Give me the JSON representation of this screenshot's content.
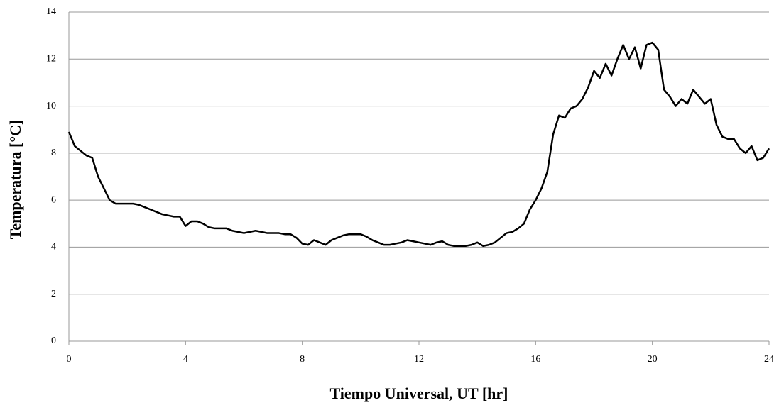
{
  "chart_data": {
    "type": "line",
    "x_label": "Tiempo Universal, UT [hr]",
    "y_label": "Temperatura [°C]",
    "xlim": [
      0,
      24
    ],
    "xticks": [
      0,
      4,
      8,
      12,
      16,
      20,
      24
    ],
    "ylim": [
      0,
      14
    ],
    "yticks": [
      0,
      2,
      4,
      6,
      8,
      10,
      12,
      14
    ],
    "grid": true,
    "x": [
      0,
      0.2,
      0.4,
      0.6,
      0.8,
      1,
      1.2,
      1.4,
      1.6,
      1.8,
      2,
      2.2,
      2.4,
      2.6,
      2.8,
      3,
      3.2,
      3.4,
      3.6,
      3.8,
      4,
      4.2,
      4.4,
      4.6,
      4.8,
      5,
      5.2,
      5.4,
      5.6,
      5.8,
      6,
      6.2,
      6.4,
      6.6,
      6.8,
      7,
      7.2,
      7.4,
      7.6,
      7.8,
      8,
      8.2,
      8.4,
      8.6,
      8.8,
      9,
      9.2,
      9.4,
      9.6,
      9.8,
      10,
      10.2,
      10.4,
      10.6,
      10.8,
      11,
      11.2,
      11.4,
      11.6,
      11.8,
      12,
      12.2,
      12.4,
      12.6,
      12.8,
      13,
      13.2,
      13.4,
      13.6,
      13.8,
      14,
      14.2,
      14.4,
      14.6,
      14.8,
      15,
      15.2,
      15.4,
      15.6,
      15.8,
      16,
      16.2,
      16.4,
      16.6,
      16.8,
      17,
      17.2,
      17.4,
      17.6,
      17.8,
      18,
      18.2,
      18.4,
      18.6,
      18.8,
      19,
      19.2,
      19.4,
      19.6,
      19.8,
      20,
      20.2,
      20.4,
      20.6,
      20.8,
      21,
      21.2,
      21.4,
      21.6,
      21.8,
      22,
      22.2,
      22.4,
      22.6,
      22.8,
      23,
      23.2,
      23.4,
      23.6,
      23.8,
      24
    ],
    "series": [
      {
        "color": "#000000",
        "values": [
          8.9,
          8.3,
          8.1,
          7.9,
          7.8,
          7.0,
          6.5,
          6.0,
          5.85,
          5.85,
          5.85,
          5.85,
          5.8,
          5.7,
          5.6,
          5.5,
          5.4,
          5.35,
          5.3,
          5.3,
          4.9,
          5.1,
          5.1,
          5.0,
          4.85,
          4.8,
          4.8,
          4.8,
          4.7,
          4.65,
          4.6,
          4.65,
          4.7,
          4.65,
          4.6,
          4.6,
          4.6,
          4.55,
          4.55,
          4.4,
          4.15,
          4.1,
          4.3,
          4.2,
          4.1,
          4.3,
          4.4,
          4.5,
          4.55,
          4.55,
          4.55,
          4.45,
          4.3,
          4.2,
          4.1,
          4.1,
          4.15,
          4.2,
          4.3,
          4.25,
          4.2,
          4.15,
          4.1,
          4.2,
          4.25,
          4.1,
          4.05,
          4.05,
          4.05,
          4.1,
          4.2,
          4.05,
          4.1,
          4.2,
          4.4,
          4.6,
          4.65,
          4.8,
          5.0,
          5.6,
          6.0,
          6.5,
          7.2,
          8.8,
          9.6,
          9.5,
          9.9,
          10.0,
          10.3,
          10.8,
          11.5,
          11.2,
          11.8,
          11.3,
          12.0,
          12.6,
          12.0,
          12.5,
          11.6,
          12.6,
          12.7,
          12.4,
          10.7,
          10.4,
          10.0,
          10.3,
          10.1,
          10.7,
          10.4,
          10.1,
          10.3,
          9.2,
          8.7,
          8.6,
          8.6,
          8.2,
          8.0,
          8.3,
          7.7,
          7.8,
          8.2
        ]
      }
    ]
  }
}
